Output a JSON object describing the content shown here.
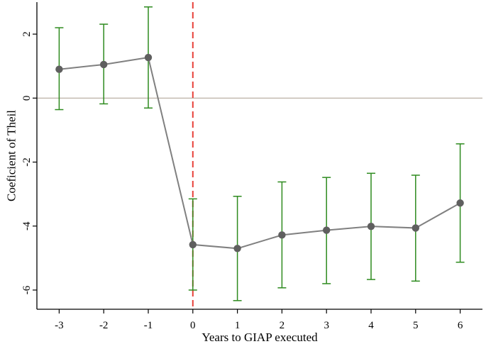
{
  "chart_data": {
    "type": "line",
    "title": "",
    "xlabel": "Years to GIAP executed",
    "ylabel": "Coeficient of Theil",
    "x": [
      -3,
      -2,
      -1,
      0,
      1,
      2,
      3,
      4,
      5,
      6
    ],
    "x_tick_labels": [
      "-3",
      "-2",
      "-1",
      "0",
      "1",
      "2",
      "3",
      "4",
      "5",
      "6"
    ],
    "xlim": [
      -3.5,
      6.5
    ],
    "y_ticks": [
      2,
      0,
      -2,
      -4,
      -6
    ],
    "y_tick_labels": [
      "2",
      "0",
      "-2",
      "-4",
      "-6"
    ],
    "ylim": [
      -6.6,
      3.0
    ],
    "grid": false,
    "reference_lines": {
      "horizontal_y": 0,
      "vertical_x": 0
    },
    "series": [
      {
        "values": [
          0.9,
          1.05,
          1.27,
          -4.58,
          -4.7,
          -4.28,
          -4.13,
          -4.01,
          -4.06,
          -3.28
        ],
        "ci_upper": [
          2.2,
          2.31,
          2.85,
          -3.15,
          -3.07,
          -2.62,
          -2.48,
          -2.35,
          -2.41,
          -1.43
        ],
        "ci_lower": [
          -0.36,
          -0.18,
          -0.31,
          -6.0,
          -6.33,
          -5.93,
          -5.8,
          -5.67,
          -5.72,
          -5.13
        ]
      }
    ],
    "colors": {
      "line": "#808080",
      "marker": "#5f5f5f",
      "error_bar": "#2e8b1f",
      "zero_line": "#b5a89c",
      "event_line": "#e8413a",
      "axis": "#000000"
    }
  }
}
